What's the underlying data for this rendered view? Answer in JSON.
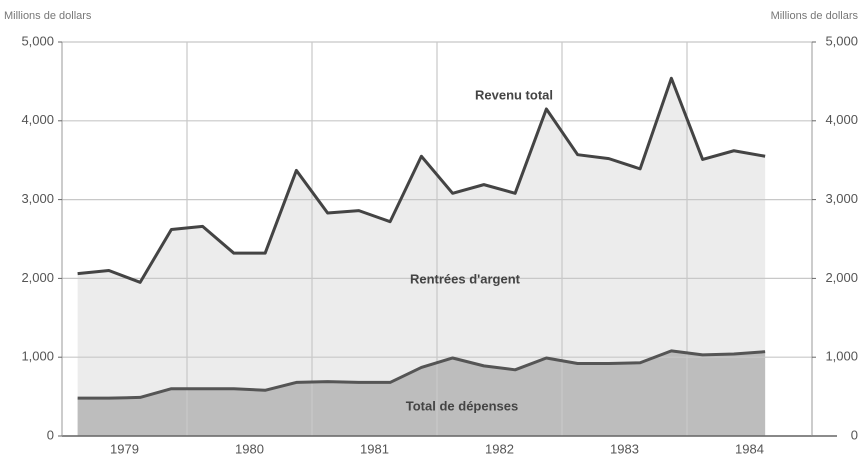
{
  "chart_data": {
    "type": "line",
    "y_label": "Millions de dollars",
    "y2_label": "Millions de dollars",
    "annotations": [
      "Revenu total",
      "Rentrées d'argent",
      "Total de dépenses"
    ],
    "x": [
      1979.125,
      1979.375,
      1979.625,
      1979.875,
      1980.125,
      1980.375,
      1980.625,
      1980.875,
      1981.125,
      1981.375,
      1981.625,
      1981.875,
      1982.125,
      1982.375,
      1982.625,
      1982.875,
      1983.125,
      1983.375,
      1983.625,
      1983.875,
      1984.125,
      1984.375,
      1984.625
    ],
    "series": [
      {
        "name": "Revenu total",
        "color": "#444444",
        "fill": "#ececec",
        "values": [
          2060,
          2100,
          1950,
          2620,
          2660,
          2320,
          2320,
          3370,
          2830,
          2860,
          2720,
          3550,
          3080,
          3190,
          3080,
          4150,
          3570,
          3520,
          3390,
          4540,
          3510,
          3620,
          3550
        ]
      },
      {
        "name": "Total de dépenses",
        "color": "#555555",
        "fill": "#bdbdbd",
        "values": [
          480,
          480,
          490,
          600,
          600,
          600,
          580,
          680,
          690,
          680,
          680,
          870,
          990,
          890,
          840,
          990,
          920,
          920,
          930,
          1080,
          1030,
          1040,
          1070
        ]
      }
    ],
    "xlim": [
      1979,
      1985
    ],
    "xticks": [
      {
        "value": 1979.5,
        "label": "1979"
      },
      {
        "value": 1980.5,
        "label": "1980"
      },
      {
        "value": 1981.5,
        "label": "1981"
      },
      {
        "value": 1982.5,
        "label": "1982"
      },
      {
        "value": 1983.5,
        "label": "1983"
      },
      {
        "value": 1984.5,
        "label": "1984"
      }
    ],
    "xgrid": [
      1980,
      1981,
      1982,
      1983,
      1984
    ],
    "ylim": [
      0,
      5000
    ],
    "yticks": [
      0,
      {
        "value": 1000,
        "label": "1,000"
      },
      {
        "value": 2000,
        "label": "2,000"
      },
      {
        "value": 3000,
        "label": "3,000"
      },
      {
        "value": 4000,
        "label": "4,000"
      },
      {
        "value": 5000,
        "label": "5,000"
      }
    ],
    "y2lim": [
      0,
      5000
    ],
    "y2ticks": [
      0,
      {
        "value": 1000,
        "label": "1,000"
      },
      {
        "value": 2000,
        "label": "2,000"
      },
      {
        "value": 3000,
        "label": "3,000"
      },
      {
        "value": 4000,
        "label": "4,000"
      },
      {
        "value": 5000,
        "label": "5,000"
      }
    ],
    "grid": true
  }
}
